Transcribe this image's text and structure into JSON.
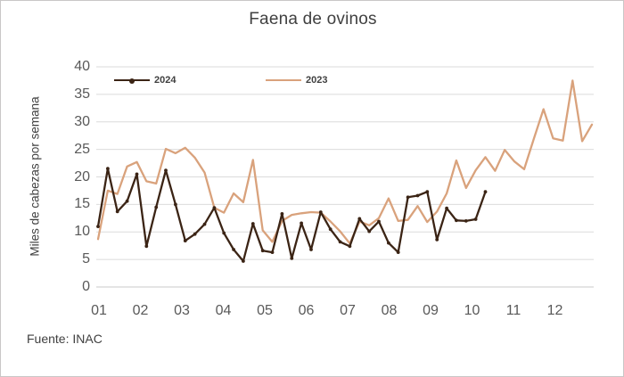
{
  "title": "Faena de ovinos",
  "y_axis_title": "Miles de cabezas por semana",
  "source": "Fuente: INAC",
  "colors": {
    "series_2024": "#3B2415",
    "series_2023": "#D9A27C",
    "gridline": "#DBDBDB",
    "zero_gridline": "#C9C9C9",
    "axis_text": "#595959",
    "text": "#404040"
  },
  "chart_data": {
    "type": "line",
    "title": "Faena de ovinos",
    "xlabel": "",
    "ylabel": "Miles de cabezas por semana",
    "x_unit": "week of year (weekly data)",
    "x_tick_labels": [
      "01",
      "02",
      "03",
      "04",
      "05",
      "06",
      "07",
      "08",
      "09",
      "10",
      "11",
      "12"
    ],
    "ylim": [
      0,
      40
    ],
    "y_ticks": [
      0,
      5,
      10,
      15,
      20,
      25,
      30,
      35,
      40
    ],
    "grid": "horizontal",
    "legend_position": "top-inside",
    "weeks_per_year": 52,
    "series": [
      {
        "name": "2024",
        "color": "#3B2415",
        "marker": "circle",
        "values": [
          11.0,
          21.5,
          13.7,
          15.6,
          20.5,
          7.4,
          14.5,
          21.2,
          15.0,
          8.4,
          9.6,
          11.4,
          14.4,
          9.8,
          6.8,
          4.7,
          11.5,
          6.6,
          6.3,
          13.3,
          5.2,
          11.6,
          6.8,
          13.6,
          10.5,
          8.2,
          7.4,
          12.4,
          10.1,
          11.9,
          8.0,
          6.3,
          16.3,
          16.6,
          17.3,
          8.6,
          14.3,
          12.1,
          12.0,
          12.3,
          17.3
        ]
      },
      {
        "name": "2023",
        "color": "#D9A27C",
        "marker": "none",
        "values": [
          8.7,
          17.5,
          16.9,
          21.9,
          22.7,
          19.2,
          18.8,
          25.1,
          24.3,
          25.3,
          23.5,
          20.8,
          14.4,
          13.5,
          17.0,
          15.4,
          23.1,
          10.3,
          8.2,
          12.0,
          13.1,
          13.4,
          13.6,
          13.5,
          11.9,
          10.1,
          7.9,
          11.9,
          11.2,
          12.5,
          16.1,
          12.0,
          12.2,
          14.7,
          11.8,
          13.7,
          17.0,
          23.0,
          18.0,
          21.2,
          23.6,
          21.1,
          24.9,
          22.8,
          21.4,
          26.9,
          32.3,
          27.0,
          26.6,
          37.5,
          26.5,
          29.5
        ]
      }
    ]
  }
}
